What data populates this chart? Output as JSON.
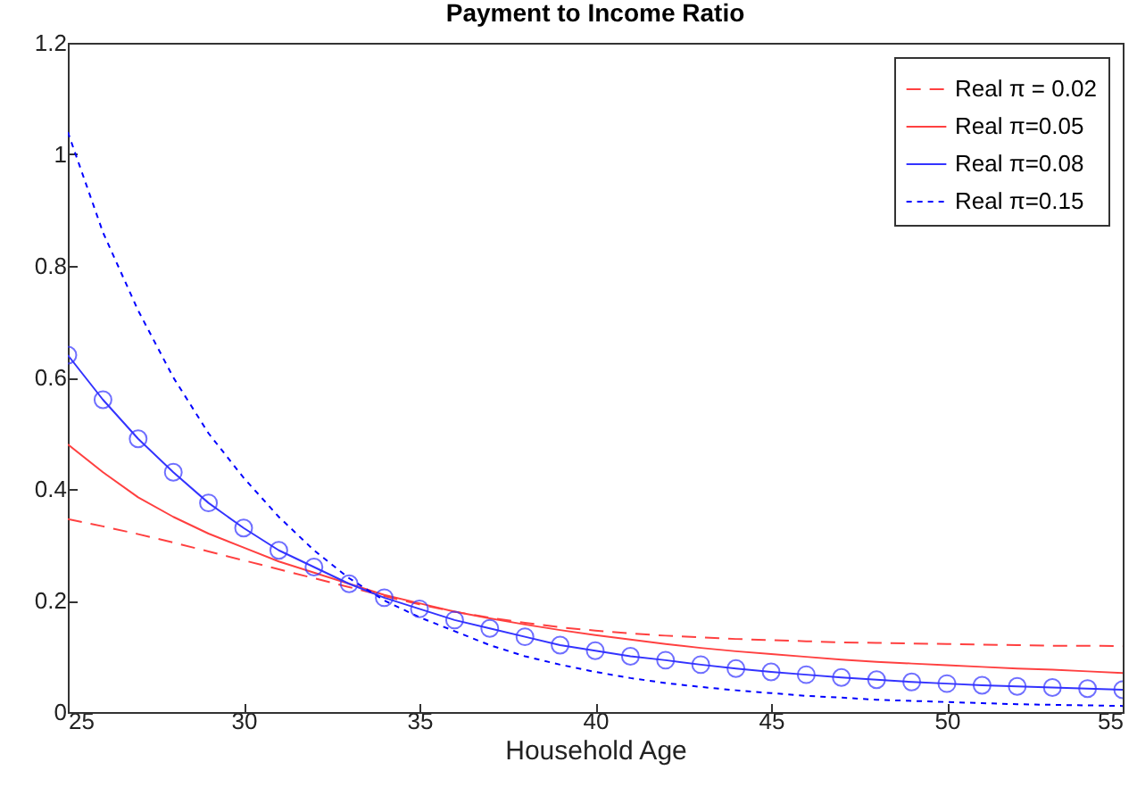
{
  "chart_data": {
    "type": "line",
    "title": "Payment to Income Ratio",
    "xlabel": "Household Age",
    "x": [
      25,
      26,
      27,
      28,
      29,
      30,
      31,
      32,
      33,
      34,
      35,
      36,
      37,
      38,
      39,
      40,
      41,
      42,
      43,
      44,
      45,
      46,
      47,
      48,
      49,
      50,
      51,
      52,
      53,
      54,
      55
    ],
    "xlim": [
      25,
      55
    ],
    "xticks": [
      25,
      30,
      35,
      40,
      45,
      50,
      55
    ],
    "ylim": [
      0,
      1.2
    ],
    "yticks": [
      0,
      0.2,
      0.4,
      0.6,
      0.8,
      1,
      1.2
    ],
    "grid": false,
    "legend": "top right",
    "marker": "none",
    "series": [
      {
        "name": "Real π = 0.02",
        "color": "#ff4040",
        "line_style": "dashed",
        "values": [
          0.346,
          0.333,
          0.319,
          0.304,
          0.288,
          0.272,
          0.256,
          0.24,
          0.224,
          0.208,
          0.193,
          0.18,
          0.169,
          0.16,
          0.152,
          0.146,
          0.141,
          0.137,
          0.134,
          0.131,
          0.129,
          0.127,
          0.125,
          0.124,
          0.123,
          0.122,
          0.121,
          0.12,
          0.119,
          0.119,
          0.118
        ]
      },
      {
        "name": "Real π=0.05",
        "color": "#ff4040",
        "line_style": "solid",
        "values": [
          0.48,
          0.43,
          0.385,
          0.35,
          0.32,
          0.295,
          0.27,
          0.25,
          0.23,
          0.21,
          0.195,
          0.18,
          0.168,
          0.157,
          0.147,
          0.138,
          0.13,
          0.122,
          0.115,
          0.109,
          0.104,
          0.099,
          0.094,
          0.09,
          0.087,
          0.084,
          0.081,
          0.078,
          0.076,
          0.073,
          0.07
        ]
      },
      {
        "name": "Real π=0.08",
        "color": "#3333ff",
        "line_style": "solid",
        "marker": "circle",
        "values": [
          0.64,
          0.56,
          0.49,
          0.43,
          0.375,
          0.33,
          0.29,
          0.26,
          0.23,
          0.205,
          0.185,
          0.165,
          0.15,
          0.135,
          0.12,
          0.11,
          0.1,
          0.093,
          0.085,
          0.078,
          0.072,
          0.067,
          0.062,
          0.058,
          0.054,
          0.051,
          0.048,
          0.046,
          0.044,
          0.042,
          0.04
        ]
      },
      {
        "name": "Real π=0.15",
        "color": "#0000ff",
        "line_style": "dotted",
        "values": [
          1.04,
          0.86,
          0.72,
          0.6,
          0.5,
          0.42,
          0.35,
          0.29,
          0.24,
          0.2,
          0.17,
          0.145,
          0.12,
          0.1,
          0.085,
          0.072,
          0.061,
          0.052,
          0.045,
          0.039,
          0.034,
          0.029,
          0.026,
          0.022,
          0.02,
          0.018,
          0.016,
          0.014,
          0.013,
          0.012,
          0.011
        ]
      }
    ]
  }
}
